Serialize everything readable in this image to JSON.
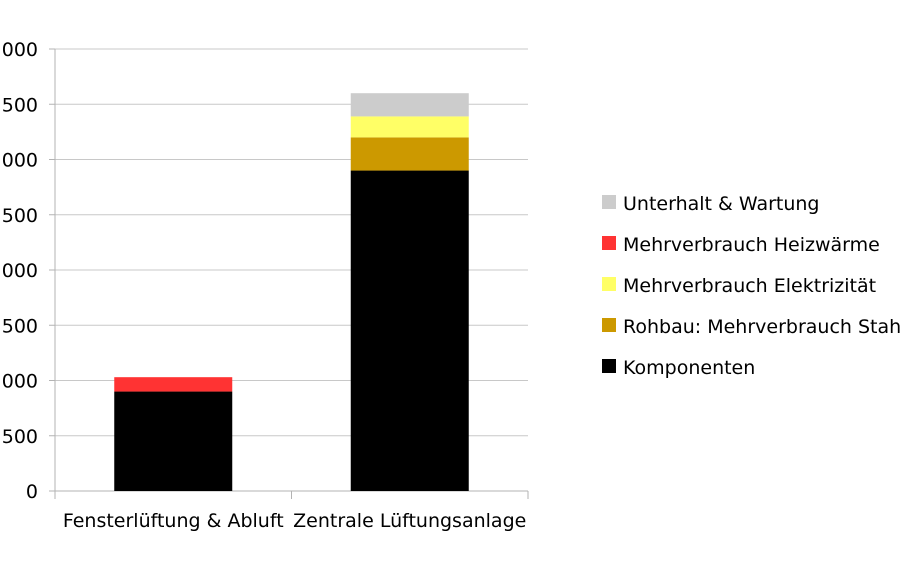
{
  "chart_data": {
    "type": "bar",
    "stacked": true,
    "title": "",
    "xlabel": "",
    "ylabel": "",
    "categories": [
      "Fensterlüftung & Abluft",
      "Zentrale Lüftungsanlage"
    ],
    "series": [
      {
        "name": "Komponenten",
        "color": "#000000",
        "values": [
          900,
          2900
        ]
      },
      {
        "name": "Rohbau: Mehrverbrauch Stah",
        "color": "#cc9900",
        "values": [
          0,
          300
        ]
      },
      {
        "name": "Mehrverbrauch Elektrizität",
        "color": "#ffff66",
        "values": [
          0,
          190
        ]
      },
      {
        "name": "Mehrverbrauch Heizwärme",
        "color": "#ff3333",
        "values": [
          130,
          0
        ]
      },
      {
        "name": "Unterhalt & Wartung",
        "color": "#cccccc",
        "values": [
          0,
          210
        ]
      }
    ],
    "yticks": [
      "0",
      "500",
      "000",
      "500",
      "000",
      "500",
      "000",
      "500",
      "000"
    ],
    "ylim": [
      0,
      4000
    ],
    "grid": true,
    "legend_position": "right",
    "legend_order": [
      "Unterhalt & Wartung",
      "Mehrverbrauch Heizwärme",
      "Mehrverbrauch Elektrizität",
      "Rohbau: Mehrverbrauch Stah",
      "Komponenten"
    ]
  }
}
